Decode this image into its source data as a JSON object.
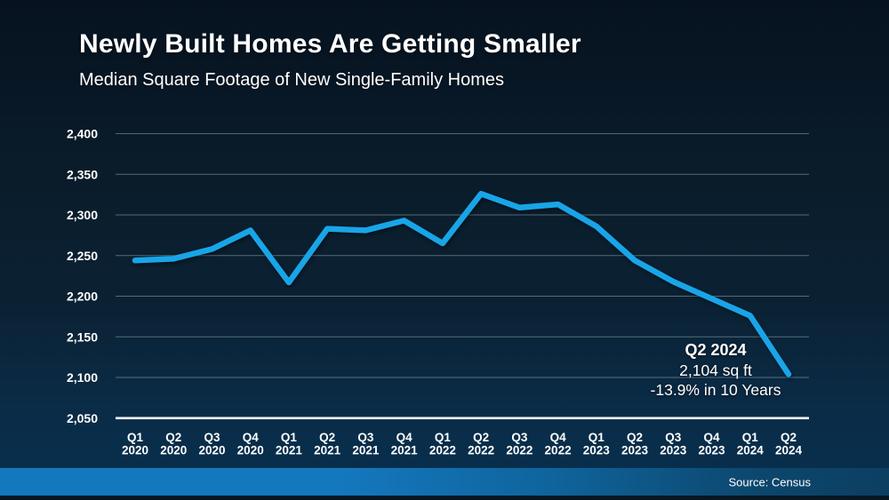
{
  "chart_data": {
    "type": "line",
    "title": "Newly Built Homes Are Getting Smaller",
    "subtitle": "Median Square Footage of New Single-Family Homes",
    "source": "Source: Census",
    "categories": [
      "Q1 2020",
      "Q2 2020",
      "Q3 2020",
      "Q4 2020",
      "Q1 2021",
      "Q2 2021",
      "Q3 2021",
      "Q4 2021",
      "Q1 2022",
      "Q2 2022",
      "Q3 2022",
      "Q4 2022",
      "Q1 2023",
      "Q2 2023",
      "Q3 2023",
      "Q4 2023",
      "Q1 2024",
      "Q2 2024"
    ],
    "values": [
      2244,
      2246,
      2258,
      2281,
      2217,
      2283,
      2281,
      2293,
      2265,
      2326,
      2309,
      2313,
      2286,
      2244,
      2218,
      2197,
      2176,
      2104
    ],
    "xlabel": "",
    "ylabel": "",
    "ylim": [
      2050,
      2400
    ],
    "yticks": [
      2400,
      2350,
      2300,
      2250,
      2200,
      2150,
      2100,
      2050
    ],
    "ytick_labels": [
      "2,400",
      "2,350",
      "2,300",
      "2,250",
      "2,200",
      "2,150",
      "2,100",
      "2,050"
    ],
    "grid": "horizontal",
    "legend": "none",
    "line_color": "#18a5e8",
    "grid_color": "rgba(214,228,235,0.38)",
    "axis_color": "#f5f8fa",
    "annotation": {
      "line1": "Q2 2024",
      "line2": "2,104 sq ft",
      "line3": "-13.9% in 10 Years"
    }
  }
}
